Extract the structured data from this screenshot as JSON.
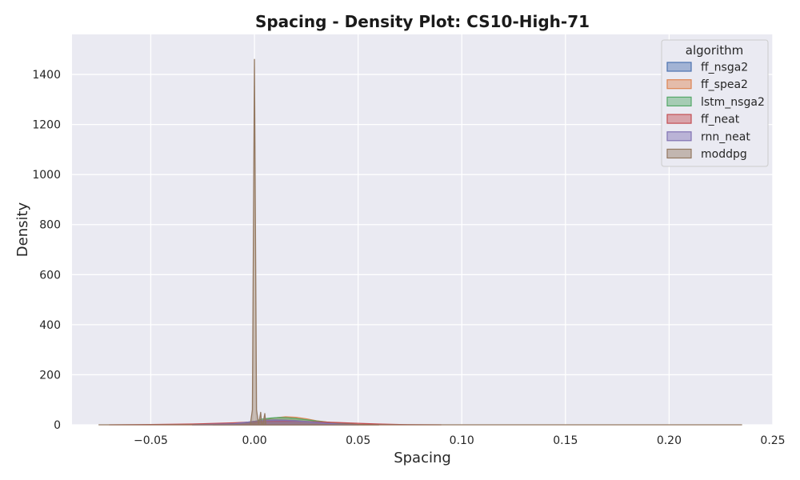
{
  "chart_data": {
    "type": "area",
    "title": "Spacing - Density Plot: CS10-High-71",
    "xlabel": "Spacing",
    "ylabel": "Density",
    "xlim": [
      -0.088,
      0.25
    ],
    "ylim": [
      0,
      1560
    ],
    "xticks": [
      -0.05,
      0.0,
      0.05,
      0.1,
      0.15,
      0.2,
      0.25
    ],
    "xtick_labels": [
      "−0.05",
      "0.00",
      "0.05",
      "0.10",
      "0.15",
      "0.20",
      "0.25"
    ],
    "yticks": [
      0,
      200,
      400,
      600,
      800,
      1000,
      1200,
      1400
    ],
    "ytick_labels": [
      "0",
      "200",
      "400",
      "600",
      "800",
      "1000",
      "1200",
      "1400"
    ],
    "grid": true,
    "legend": {
      "title": "algorithm",
      "position": "top-right"
    },
    "series": [
      {
        "name": "ff_nsga2",
        "color": "#4c72b0",
        "x": [
          -0.03,
          -0.01,
          0.0,
          0.005,
          0.01,
          0.015,
          0.02,
          0.03,
          0.04,
          0.05,
          0.06
        ],
        "y": [
          0,
          3,
          14,
          18,
          20,
          19,
          17,
          10,
          4,
          1,
          0
        ]
      },
      {
        "name": "ff_spea2",
        "color": "#dd8452",
        "x": [
          -0.02,
          0.0,
          0.005,
          0.01,
          0.015,
          0.02,
          0.025,
          0.03,
          0.04,
          0.05,
          0.06
        ],
        "y": [
          0,
          6,
          20,
          28,
          32,
          30,
          24,
          16,
          6,
          1,
          0
        ]
      },
      {
        "name": "lstm_nsga2",
        "color": "#55a868",
        "x": [
          -0.02,
          0.0,
          0.003,
          0.008,
          0.012,
          0.016,
          0.02,
          0.03,
          0.04,
          0.05,
          0.06
        ],
        "y": [
          0,
          10,
          22,
          27,
          29,
          28,
          25,
          15,
          6,
          1,
          0
        ]
      },
      {
        "name": "ff_neat",
        "color": "#c44e52",
        "x": [
          -0.07,
          -0.05,
          -0.03,
          -0.01,
          0.0,
          0.01,
          0.02,
          0.03,
          0.04,
          0.05,
          0.06,
          0.07,
          0.09
        ],
        "y": [
          0,
          1,
          3,
          8,
          12,
          14,
          14,
          12,
          9,
          6,
          3,
          1,
          0
        ]
      },
      {
        "name": "rnn_neat",
        "color": "#8172b3",
        "x": [
          -0.03,
          -0.01,
          0.0,
          0.005,
          0.01,
          0.015,
          0.02,
          0.03,
          0.04,
          0.05
        ],
        "y": [
          0,
          4,
          14,
          18,
          19,
          18,
          16,
          9,
          3,
          0
        ]
      },
      {
        "name": "moddpg",
        "color": "#937860",
        "x": [
          -0.075,
          -0.002,
          -0.001,
          0.0,
          0.001,
          0.002,
          0.003,
          0.0035,
          0.004,
          0.005,
          0.0055,
          0.006,
          0.007,
          0.235
        ],
        "y": [
          0,
          0,
          60,
          1460,
          60,
          0,
          50,
          0,
          0,
          45,
          0,
          0,
          0,
          0
        ]
      }
    ]
  }
}
